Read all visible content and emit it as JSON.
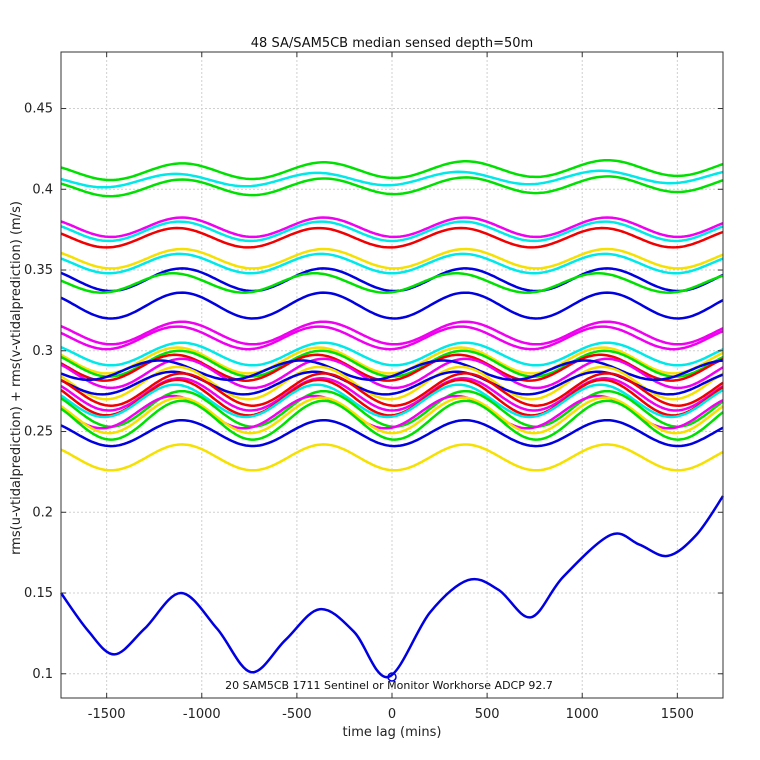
{
  "chart_data": {
    "type": "line",
    "title": "48 SA/SAM5CB median sensed depth=50m",
    "xlabel": "time lag (mins)",
    "ylabel": "rms(u-vtidalprediction) + rms(v-vtidalprediction) (m/s)",
    "xlim": [
      -1740,
      1740
    ],
    "ylim": [
      0.085,
      0.485
    ],
    "xticks": [
      -1500,
      -1000,
      -500,
      0,
      500,
      1000,
      1500
    ],
    "xtick_labels": [
      "-1500",
      "-1000",
      "-500",
      "0",
      "500",
      "1000",
      "1500"
    ],
    "yticks": [
      0.1,
      0.15,
      0.2,
      0.25,
      0.3,
      0.35,
      0.4,
      0.45
    ],
    "ytick_labels": [
      "0.1",
      "0.15",
      "0.2",
      "0.25",
      "0.3",
      "0.35",
      "0.4",
      "0.45"
    ],
    "grid": true,
    "annotation": {
      "text": "20 SAM5CB 1711 Sentinel or Monitor Workhorse ADCP 92.7",
      "x": 0,
      "y": 0.098
    },
    "series": [
      {
        "color": "#00e000",
        "base": 0.4105,
        "amp": 0.005,
        "phase": 0.0,
        "trend": 0.003
      },
      {
        "color": "#00e000",
        "base": 0.4005,
        "amp": 0.005,
        "phase": 0.0,
        "trend": 0.003
      },
      {
        "color": "#00e8e8",
        "base": 0.405,
        "amp": 0.004,
        "phase": 0.3,
        "trend": 0.003
      },
      {
        "color": "#f000f0",
        "base": 0.3765,
        "amp": 0.006,
        "phase": 0.0,
        "trend": 0.0
      },
      {
        "color": "#00e8e8",
        "base": 0.374,
        "amp": 0.006,
        "phase": 0.1,
        "trend": 0.0
      },
      {
        "color": "#f00000",
        "base": 0.37,
        "amp": 0.006,
        "phase": 0.2,
        "trend": 0.0
      },
      {
        "color": "#f5e000",
        "base": 0.357,
        "amp": 0.006,
        "phase": 0.0,
        "trend": 0.0
      },
      {
        "color": "#00e8e8",
        "base": 0.354,
        "amp": 0.006,
        "phase": 0.1,
        "trend": 0.0
      },
      {
        "color": "#0000e0",
        "base": 0.344,
        "amp": 0.007,
        "phase": 0.0,
        "trend": 0.0
      },
      {
        "color": "#00e000",
        "base": 0.342,
        "amp": 0.006,
        "phase": 0.4,
        "trend": 0.0
      },
      {
        "color": "#0000e0",
        "base": 0.328,
        "amp": 0.008,
        "phase": 0.0,
        "trend": 0.0
      },
      {
        "color": "#f000f0",
        "base": 0.311,
        "amp": 0.007,
        "phase": 0.0,
        "trend": 0.0
      },
      {
        "color": "#f000f0",
        "base": 0.308,
        "amp": 0.007,
        "phase": 0.2,
        "trend": 0.0
      },
      {
        "color": "#00e8e8",
        "base": 0.298,
        "amp": 0.007,
        "phase": 0.0,
        "trend": 0.0
      },
      {
        "color": "#f5e000",
        "base": 0.294,
        "amp": 0.008,
        "phase": 0.2,
        "trend": 0.0
      },
      {
        "color": "#00e000",
        "base": 0.292,
        "amp": 0.008,
        "phase": 0.1,
        "trend": 0.0
      },
      {
        "color": "#f00000",
        "base": 0.2895,
        "amp": 0.008,
        "phase": 0.3,
        "trend": 0.0
      },
      {
        "color": "#f000f0",
        "base": 0.286,
        "amp": 0.009,
        "phase": 0.0,
        "trend": 0.0
      },
      {
        "color": "#0000e0",
        "base": 0.288,
        "amp": 0.006,
        "phase": 1.0,
        "trend": 0.0
      },
      {
        "color": "#f5e000",
        "base": 0.28,
        "amp": 0.01,
        "phase": 0.2,
        "trend": 0.0
      },
      {
        "color": "#0000e0",
        "base": 0.28,
        "amp": 0.007,
        "phase": 0.4,
        "trend": 0.0
      },
      {
        "color": "#f00000",
        "base": 0.276,
        "amp": 0.01,
        "phase": 0.0,
        "trend": 0.0
      },
      {
        "color": "#f000f0",
        "base": 0.273,
        "amp": 0.01,
        "phase": 0.1,
        "trend": 0.0
      },
      {
        "color": "#f00000",
        "base": 0.271,
        "amp": 0.011,
        "phase": 0.2,
        "trend": 0.0
      },
      {
        "color": "#00e8e8",
        "base": 0.269,
        "amp": 0.01,
        "phase": 0.3,
        "trend": 0.0
      },
      {
        "color": "#00e000",
        "base": 0.264,
        "amp": 0.011,
        "phase": 0.0,
        "trend": 0.0
      },
      {
        "color": "#f000f0",
        "base": 0.262,
        "amp": 0.01,
        "phase": 0.4,
        "trend": 0.0
      },
      {
        "color": "#f5e000",
        "base": 0.26,
        "amp": 0.011,
        "phase": 0.1,
        "trend": 0.0
      },
      {
        "color": "#00e000",
        "base": 0.257,
        "amp": 0.012,
        "phase": 0.0,
        "trend": 0.0
      },
      {
        "color": "#0000e0",
        "base": 0.249,
        "amp": 0.008,
        "phase": 0.0,
        "trend": 0.0
      },
      {
        "color": "#f5e000",
        "base": 0.234,
        "amp": 0.008,
        "phase": 0.0,
        "trend": 0.0
      }
    ],
    "highlight_series": {
      "color": "#0000e0",
      "x": [
        -1740,
        -1600,
        -1460,
        -1300,
        -1110,
        -920,
        -740,
        -560,
        -380,
        -200,
        -20,
        200,
        400,
        560,
        730,
        900,
        1150,
        1300,
        1450,
        1600,
        1740
      ],
      "y": [
        0.15,
        0.127,
        0.112,
        0.128,
        0.15,
        0.128,
        0.101,
        0.121,
        0.14,
        0.126,
        0.098,
        0.138,
        0.158,
        0.152,
        0.135,
        0.16,
        0.186,
        0.18,
        0.173,
        0.186,
        0.21
      ]
    }
  }
}
